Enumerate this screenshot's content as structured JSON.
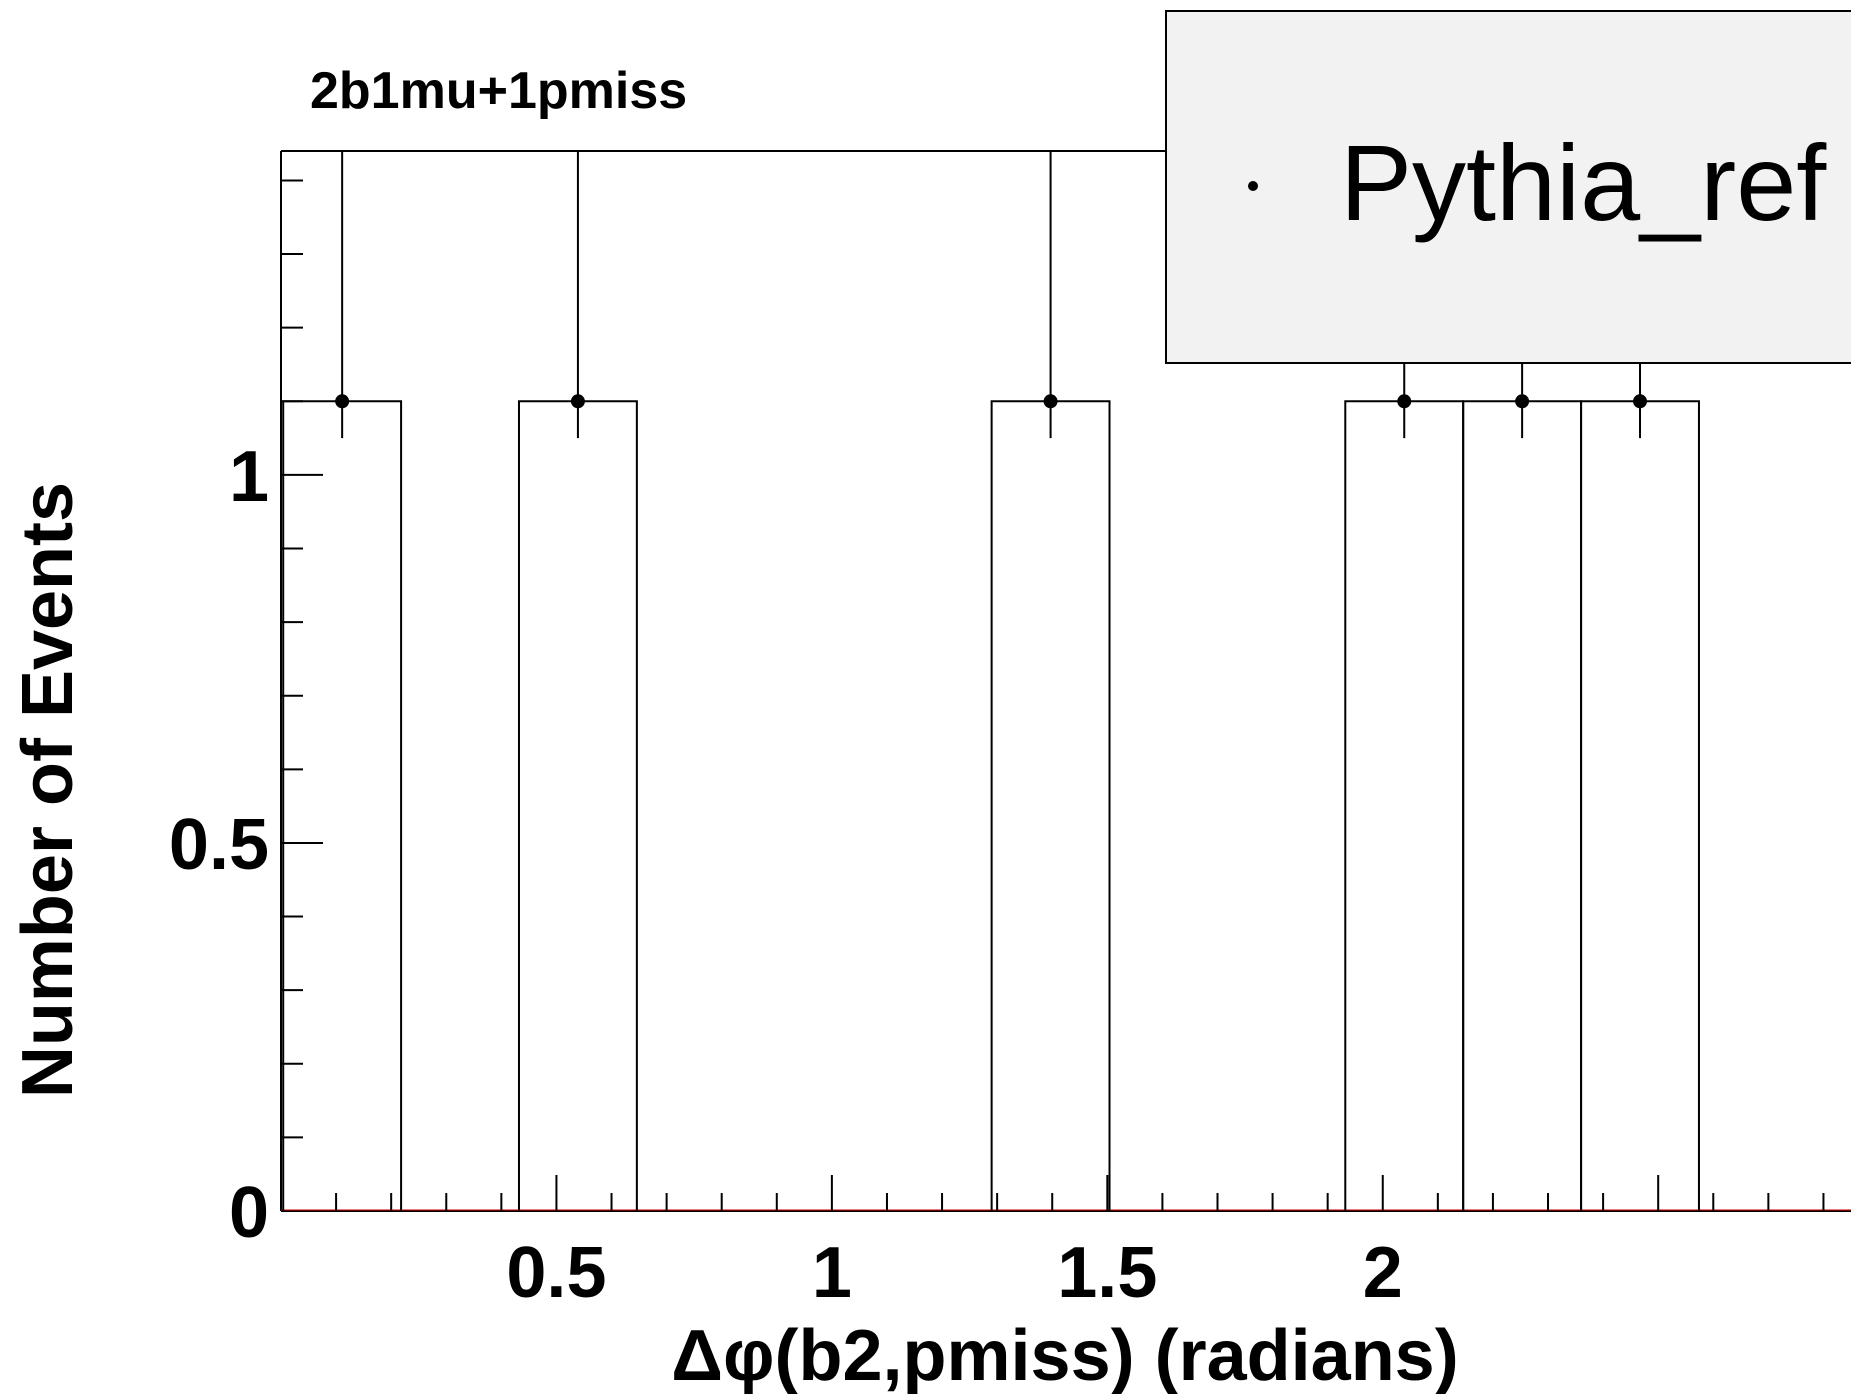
{
  "chart_data": {
    "type": "bar",
    "title": "2b1mu+1pmiss",
    "xlabel": "Δφ(b2,pmiss) (radians)",
    "ylabel": "Number of Events",
    "x_tick_labels": [
      "0.5",
      "1",
      "1.5",
      "2"
    ],
    "y_tick_labels": [
      "0",
      "0.5",
      "1"
    ],
    "xlim": [
      0.0,
      2.85
    ],
    "ylim": [
      0,
      1.44
    ],
    "bin_width": 0.214,
    "series": [
      {
        "name": "Pythia_ref",
        "bins": [
          {
            "low": 0.004,
            "value": 1.1
          },
          {
            "low": 0.432,
            "value": 1.1
          },
          {
            "low": 1.29,
            "value": 1.1
          },
          {
            "low": 1.932,
            "value": 1.1
          },
          {
            "low": 2.146,
            "value": 1.1
          },
          {
            "low": 2.36,
            "value": 1.1
          }
        ],
        "error_low": 1.05,
        "error_high": 1.44
      }
    ],
    "legend": {
      "entries": [
        "Pythia_ref"
      ],
      "position": "top-right"
    },
    "colors": {
      "line": "#000000",
      "legend_fill": "#f2f2f2",
      "baseline": "#cc0000"
    }
  }
}
